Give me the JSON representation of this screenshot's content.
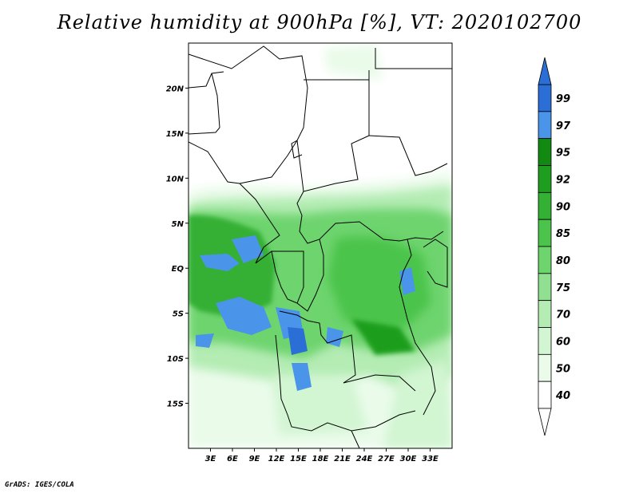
{
  "title": "Relative humidity at 900hPa [%], VT: 2020102700",
  "footer": "GrADS: IGES/COLA",
  "map": {
    "lon_range": [
      0,
      36
    ],
    "lat_range": [
      -20,
      25
    ],
    "lat_ticks": [
      {
        "value": 20,
        "label": "20N"
      },
      {
        "value": 15,
        "label": "15N"
      },
      {
        "value": 10,
        "label": "10N"
      },
      {
        "value": 5,
        "label": "5N"
      },
      {
        "value": 0,
        "label": "EQ"
      },
      {
        "value": -5,
        "label": "5S"
      },
      {
        "value": -10,
        "label": "10S"
      },
      {
        "value": -15,
        "label": "15S"
      }
    ],
    "lon_ticks": [
      {
        "value": 3,
        "label": "3E"
      },
      {
        "value": 6,
        "label": "6E"
      },
      {
        "value": 9,
        "label": "9E"
      },
      {
        "value": 12,
        "label": "12E"
      },
      {
        "value": 15,
        "label": "15E"
      },
      {
        "value": 18,
        "label": "18E"
      },
      {
        "value": 21,
        "label": "21E"
      },
      {
        "value": 24,
        "label": "24E"
      },
      {
        "value": 27,
        "label": "27E"
      },
      {
        "value": 30,
        "label": "30E"
      },
      {
        "value": 33,
        "label": "33E"
      }
    ]
  },
  "colorbar": {
    "levels": [
      "99",
      "97",
      "95",
      "92",
      "90",
      "85",
      "80",
      "75",
      "70",
      "60",
      "50",
      "40"
    ],
    "colors": [
      "#2b6fd6",
      "#4a94ea",
      "#128a12",
      "#1e9e1e",
      "#34b034",
      "#4cc44c",
      "#6ed46e",
      "#91e091",
      "#b4ecb4",
      "#d2f5d2",
      "#eafbea",
      "#ffffff"
    ]
  },
  "fill_colors": {
    "c40": "#eafbea",
    "c50": "#d2f5d2",
    "c60": "#b4ecb4",
    "c70": "#91e091",
    "c80": "#6ed46e",
    "c85": "#4cc44c",
    "c90": "#34b034",
    "c92": "#1e9e1e",
    "c97": "#4a94ea",
    "c99": "#2b6fd6"
  }
}
